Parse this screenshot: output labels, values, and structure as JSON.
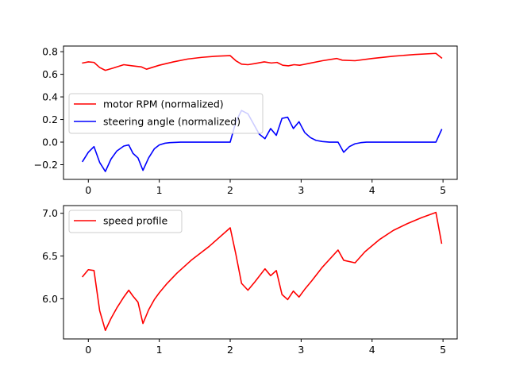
{
  "chart_data": [
    {
      "type": "line",
      "title": "",
      "xlabel": "",
      "ylabel": "",
      "xlim": [
        -0.35,
        5.2
      ],
      "ylim": [
        -0.33,
        0.85
      ],
      "xticks": [
        0,
        1,
        2,
        3,
        4,
        5
      ],
      "yticks": [
        -0.2,
        0.0,
        0.2,
        0.4,
        0.6,
        0.8
      ],
      "xtick_labels": [
        "0",
        "1",
        "2",
        "3",
        "4",
        "5"
      ],
      "ytick_labels": [
        "−0.2",
        "0.0",
        "0.2",
        "0.4",
        "0.6",
        "0.8"
      ],
      "grid": false,
      "legend_position": "center-left",
      "series": [
        {
          "name": "motor RPM (normalized)",
          "color": "#ff0000",
          "x": [
            -0.08,
            0.0,
            0.08,
            0.16,
            0.24,
            0.35,
            0.5,
            0.62,
            0.75,
            0.82,
            1.0,
            1.2,
            1.4,
            1.6,
            1.8,
            2.0,
            2.08,
            2.16,
            2.25,
            2.35,
            2.48,
            2.58,
            2.66,
            2.74,
            2.82,
            2.9,
            2.98,
            3.1,
            3.3,
            3.5,
            3.58,
            3.76,
            4.0,
            4.3,
            4.6,
            4.9,
            4.98
          ],
          "values": [
            0.7,
            0.71,
            0.705,
            0.66,
            0.635,
            0.655,
            0.685,
            0.675,
            0.665,
            0.645,
            0.68,
            0.71,
            0.735,
            0.75,
            0.76,
            0.765,
            0.72,
            0.69,
            0.685,
            0.695,
            0.71,
            0.7,
            0.705,
            0.68,
            0.675,
            0.685,
            0.68,
            0.695,
            0.72,
            0.74,
            0.725,
            0.72,
            0.74,
            0.76,
            0.775,
            0.785,
            0.745
          ]
        },
        {
          "name": "steering angle (normalized)",
          "color": "#0000ff",
          "x": [
            -0.08,
            0.0,
            0.08,
            0.16,
            0.24,
            0.32,
            0.4,
            0.5,
            0.57,
            0.63,
            0.7,
            0.77,
            0.85,
            0.93,
            1.0,
            1.08,
            1.15,
            1.3,
            1.5,
            1.8,
            2.0,
            2.08,
            2.16,
            2.25,
            2.33,
            2.41,
            2.49,
            2.57,
            2.65,
            2.73,
            2.81,
            2.89,
            2.97,
            3.05,
            3.13,
            3.21,
            3.3,
            3.4,
            3.52,
            3.6,
            3.68,
            3.76,
            3.84,
            3.92,
            4.0,
            4.3,
            4.6,
            4.9,
            4.98
          ],
          "values": [
            -0.17,
            -0.09,
            -0.04,
            -0.18,
            -0.26,
            -0.15,
            -0.08,
            -0.035,
            -0.025,
            -0.1,
            -0.14,
            -0.25,
            -0.14,
            -0.06,
            -0.025,
            -0.01,
            -0.005,
            0.0,
            0.0,
            0.0,
            0.0,
            0.18,
            0.28,
            0.25,
            0.16,
            0.07,
            0.03,
            0.12,
            0.06,
            0.21,
            0.22,
            0.12,
            0.18,
            0.085,
            0.04,
            0.015,
            0.005,
            0.0,
            0.0,
            -0.09,
            -0.04,
            -0.015,
            -0.005,
            0.0,
            0.0,
            0.0,
            0.0,
            0.0,
            0.11
          ]
        }
      ]
    },
    {
      "type": "line",
      "title": "",
      "xlabel": "",
      "ylabel": "",
      "xlim": [
        -0.35,
        5.2
      ],
      "ylim": [
        5.53,
        7.09
      ],
      "xticks": [
        0,
        1,
        2,
        3,
        4,
        5
      ],
      "yticks": [
        6.0,
        6.5,
        7.0
      ],
      "xtick_labels": [
        "0",
        "1",
        "2",
        "3",
        "4",
        "5"
      ],
      "ytick_labels": [
        "6.0",
        "6.5",
        "7.0"
      ],
      "grid": false,
      "legend_position": "top-left",
      "series": [
        {
          "name": "speed profile",
          "color": "#ff0000",
          "x": [
            -0.08,
            0.0,
            0.08,
            0.16,
            0.24,
            0.32,
            0.4,
            0.5,
            0.57,
            0.63,
            0.7,
            0.77,
            0.85,
            0.93,
            1.0,
            1.1,
            1.25,
            1.45,
            1.7,
            2.0,
            2.08,
            2.16,
            2.25,
            2.35,
            2.49,
            2.57,
            2.65,
            2.73,
            2.81,
            2.89,
            2.97,
            3.05,
            3.15,
            3.3,
            3.52,
            3.6,
            3.76,
            3.9,
            4.1,
            4.3,
            4.5,
            4.7,
            4.9,
            4.98
          ],
          "values": [
            6.26,
            6.34,
            6.33,
            5.86,
            5.63,
            5.77,
            5.89,
            6.02,
            6.1,
            6.03,
            5.96,
            5.71,
            5.87,
            5.99,
            6.07,
            6.17,
            6.3,
            6.45,
            6.61,
            6.83,
            6.52,
            6.18,
            6.1,
            6.2,
            6.35,
            6.27,
            6.33,
            6.05,
            5.99,
            6.09,
            6.02,
            6.11,
            6.21,
            6.37,
            6.57,
            6.45,
            6.42,
            6.55,
            6.69,
            6.8,
            6.88,
            6.95,
            7.01,
            6.65
          ]
        }
      ]
    }
  ]
}
